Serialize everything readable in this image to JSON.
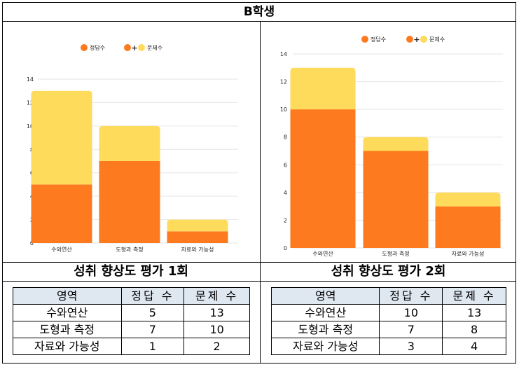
{
  "title": "B학생",
  "panels": [
    {
      "subtitle": "성취 향상도 평가 1회",
      "chart_data": {
        "type": "bar",
        "stacked": true,
        "categories": [
          "수와연산",
          "도형과 측정",
          "자료와 가능성"
        ],
        "series": [
          {
            "name": "정답수",
            "values": [
              5,
              7,
              1
            ],
            "color": "#fd7a1f"
          },
          {
            "name": "+",
            "values": [
              8,
              3,
              1
            ],
            "color": "#fedb5a"
          }
        ],
        "legend": [
          "정답수",
          "+",
          "문제수"
        ],
        "totals": [
          13,
          10,
          2
        ],
        "ylim": [
          0,
          14
        ],
        "yticks": [
          0,
          2,
          4,
          6,
          8,
          10,
          12,
          14
        ],
        "grid": true,
        "legend_position": "top"
      },
      "table": {
        "headers": [
          "영역",
          "정답 수",
          "문제 수"
        ],
        "rows": [
          [
            "수와연산",
            "5",
            "13"
          ],
          [
            "도형과 측정",
            "7",
            "10"
          ],
          [
            "자료와 가능성",
            "1",
            "2"
          ]
        ]
      }
    },
    {
      "subtitle": "성취 향상도 평가 2회",
      "chart_data": {
        "type": "bar",
        "stacked": true,
        "categories": [
          "수와연산",
          "도형과 측정",
          "자료와 가능성"
        ],
        "series": [
          {
            "name": "정답수",
            "values": [
              10,
              7,
              3
            ],
            "color": "#fd7a1f"
          },
          {
            "name": "+",
            "values": [
              3,
              1,
              1
            ],
            "color": "#fedb5a"
          }
        ],
        "legend": [
          "정답수",
          "+",
          "문제수"
        ],
        "totals": [
          13,
          8,
          4
        ],
        "ylim": [
          0,
          14
        ],
        "yticks": [
          0,
          2,
          4,
          6,
          8,
          10,
          12,
          14
        ],
        "grid": true,
        "legend_position": "top-right"
      },
      "table": {
        "headers": [
          "영역",
          "정답 수",
          "문제 수"
        ],
        "rows": [
          [
            "수와연산",
            "10",
            "13"
          ],
          [
            "도형과 측정",
            "7",
            "8"
          ],
          [
            "자료와 가능성",
            "3",
            "4"
          ]
        ]
      }
    }
  ]
}
